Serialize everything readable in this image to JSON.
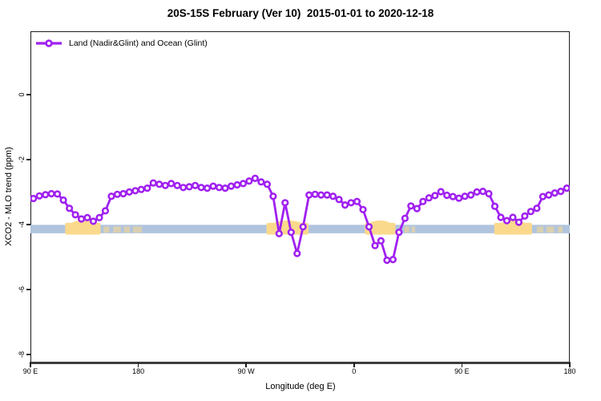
{
  "title": "20S-15S February (Ver 10)  2015-01-01 to 2020-12-18",
  "legend": {
    "label": "Land (Nadir&Glint) and Ocean (Glint)"
  },
  "axes": {
    "x": {
      "label": "Longitude (deg E)",
      "ticks": [
        {
          "lon": 90,
          "label": "90 E"
        },
        {
          "lon": 180,
          "label": "180"
        },
        {
          "lon": 270,
          "label": "90 W"
        },
        {
          "lon": 360,
          "label": "0"
        },
        {
          "lon": 450,
          "label": "90 E"
        },
        {
          "lon": 540,
          "label": "180"
        }
      ]
    },
    "y": {
      "label": "XCO2 - MLO trend (ppm)",
      "ticks": [
        {
          "value": 0,
          "label": "0"
        },
        {
          "value": -2,
          "label": "-2"
        },
        {
          "value": -4,
          "label": "-4"
        },
        {
          "value": -6,
          "label": "-6"
        },
        {
          "value": -8,
          "label": "-8"
        }
      ]
    }
  },
  "colors": {
    "line": "#A020F0",
    "band_blue": "#B0C4DE",
    "band_orange": "#FBD98C",
    "axis": "#1c1c1c",
    "axis_heavy": "#3d3d3d"
  },
  "chart_data": {
    "type": "line",
    "title": "20S-15S February (Ver 10)  2015-01-01 to 2020-12-18",
    "xlabel": "Longitude (deg E)",
    "ylabel": "XCO2 - MLO trend (ppm)",
    "xlim": [
      90,
      540
    ],
    "ylim": [
      -8.25,
      1.95
    ],
    "x_note": "longitude axis wraps eastward: 90E, 180, 90W, 0, 90E, 180",
    "grid": false,
    "legend_position": "top-left",
    "series": [
      {
        "name": "Land (Nadir&Glint) and Ocean (Glint)",
        "color": "#A020F0",
        "marker": "open-circle",
        "x": [
          92.5,
          97.5,
          102.5,
          107.5,
          112.5,
          117.5,
          122.5,
          127.5,
          132.5,
          137.5,
          142.5,
          147.5,
          152.5,
          157.5,
          162.5,
          167.5,
          172.5,
          177.5,
          182.5,
          187.5,
          192.5,
          197.5,
          202.5,
          207.5,
          212.5,
          217.5,
          222.5,
          227.5,
          232.5,
          237.5,
          242.5,
          247.5,
          252.5,
          257.5,
          262.5,
          267.5,
          272.5,
          277.5,
          282.5,
          287.5,
          292.5,
          297.5,
          302.5,
          307.5,
          312.5,
          317.5,
          322.5,
          327.5,
          332.5,
          337.5,
          342.5,
          347.5,
          352.5,
          357.5,
          362.5,
          367.5,
          372.5,
          377.5,
          382.5,
          387.5,
          392.5,
          397.5,
          402.5,
          407.5,
          412.5,
          417.5,
          422.5,
          427.5,
          432.5,
          437.5,
          442.5,
          447.5,
          452.5,
          457.5,
          462.5,
          467.5,
          472.5,
          477.5,
          482.5,
          487.5,
          492.5,
          497.5,
          502.5,
          507.5,
          512.5,
          517.5,
          522.5,
          527.5,
          532.5,
          537.5
        ],
        "y": [
          -3.2,
          -3.12,
          -3.08,
          -3.05,
          -3.06,
          -3.25,
          -3.5,
          -3.7,
          -3.83,
          -3.79,
          -3.9,
          -3.79,
          -3.58,
          -3.13,
          -3.07,
          -3.05,
          -3.0,
          -2.96,
          -2.92,
          -2.88,
          -2.72,
          -2.76,
          -2.8,
          -2.74,
          -2.8,
          -2.86,
          -2.84,
          -2.8,
          -2.86,
          -2.88,
          -2.82,
          -2.86,
          -2.88,
          -2.82,
          -2.78,
          -2.74,
          -2.66,
          -2.58,
          -2.69,
          -2.76,
          -3.13,
          -4.28,
          -3.33,
          -4.24,
          -4.89,
          -4.07,
          -3.09,
          -3.07,
          -3.09,
          -3.09,
          -3.13,
          -3.23,
          -3.4,
          -3.33,
          -3.29,
          -3.54,
          -4.07,
          -4.65,
          -4.5,
          -5.1,
          -5.08,
          -4.24,
          -3.81,
          -3.43,
          -3.51,
          -3.29,
          -3.18,
          -3.11,
          -2.99,
          -3.1,
          -3.14,
          -3.19,
          -3.13,
          -3.09,
          -3.0,
          -2.98,
          -3.05,
          -3.44,
          -3.78,
          -3.88,
          -3.78,
          -3.93,
          -3.74,
          -3.6,
          -3.5,
          -3.14,
          -3.09,
          -3.03,
          -2.98,
          -2.88
        ]
      }
    ],
    "bands": {
      "blue": {
        "color": "#B0C4DE",
        "x_from": 90,
        "x_to": 540,
        "y_from": -4.01,
        "y_to": -4.27
      },
      "orange": {
        "color": "#FBD98C",
        "y_from": -3.95,
        "y_to": -4.31,
        "segments": [
          {
            "x_from": 119,
            "x_to": 148.5,
            "bump": true,
            "speckle": false
          },
          {
            "x_from": 151,
            "x_to": 156,
            "bump": false,
            "speckle": true
          },
          {
            "x_from": 159,
            "x_to": 165.5,
            "bump": false,
            "speckle": true
          },
          {
            "x_from": 168,
            "x_to": 173,
            "bump": false,
            "speckle": true
          },
          {
            "x_from": 175.5,
            "x_to": 183,
            "bump": false,
            "speckle": true
          },
          {
            "x_from": 287,
            "x_to": 322,
            "bump": true,
            "speckle": false
          },
          {
            "x_from": 369,
            "x_to": 394.5,
            "bump": true,
            "speckle": false
          },
          {
            "x_from": 402,
            "x_to": 406,
            "bump": false,
            "speckle": true
          },
          {
            "x_from": 408,
            "x_to": 411,
            "bump": false,
            "speckle": true
          },
          {
            "x_from": 477,
            "x_to": 508.5,
            "bump": true,
            "speckle": false
          },
          {
            "x_from": 512.5,
            "x_to": 518,
            "bump": false,
            "speckle": true
          },
          {
            "x_from": 520.5,
            "x_to": 527,
            "bump": false,
            "speckle": true
          },
          {
            "x_from": 530,
            "x_to": 534,
            "bump": false,
            "speckle": true
          }
        ]
      }
    }
  }
}
